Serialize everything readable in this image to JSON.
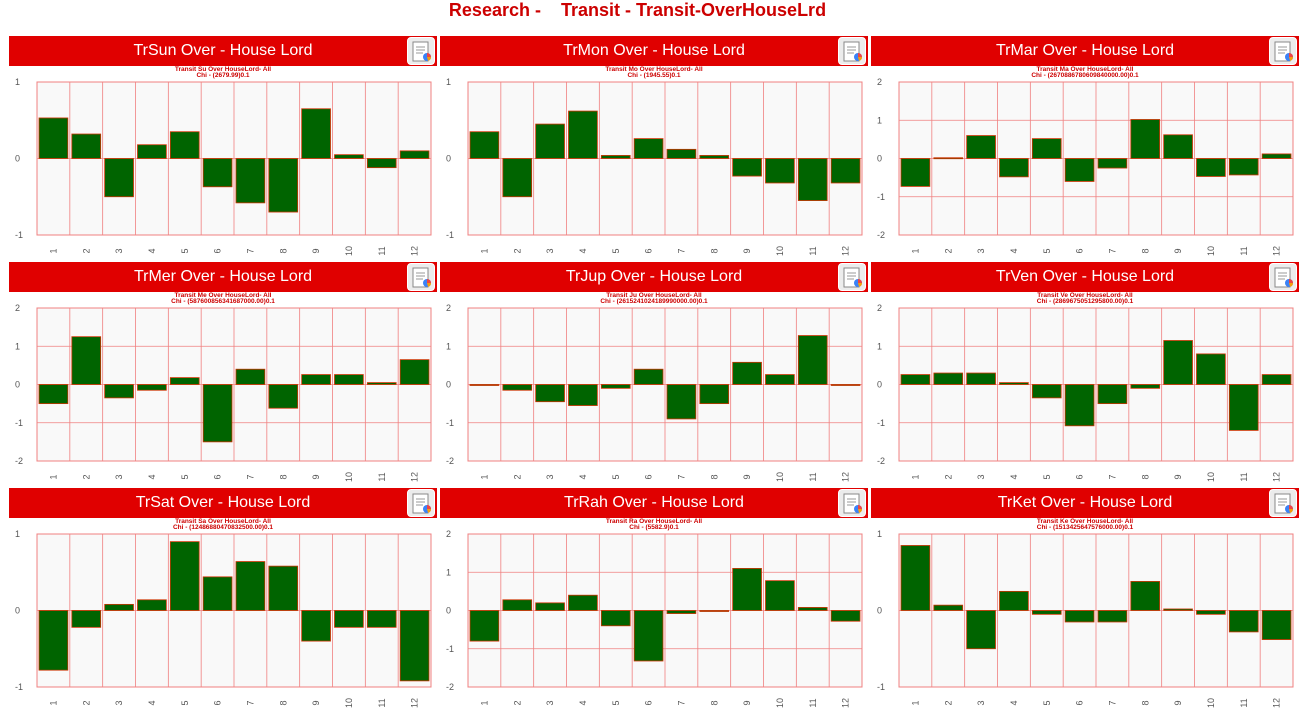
{
  "page": {
    "title_part1": "Research -",
    "title_part2": "Transit - Transit-OverHouseLrd"
  },
  "colors": {
    "header_bg": "#e00000",
    "bar_fill": "#006400",
    "bar_stroke": "#cc3300",
    "grid": "#f08080",
    "plot_bg": "#f9f9f9"
  },
  "icon": "report-icon",
  "chart_data": [
    {
      "type": "bar",
      "header": "TrSun Over - House Lord",
      "subtitle1": "Transit Su Over HouseLord- All",
      "subtitle2": "Chi - (2679.99)0.1",
      "categories": [
        "1",
        "2",
        "3",
        "4",
        "5",
        "6",
        "7",
        "8",
        "9",
        "10",
        "11",
        "12"
      ],
      "values": [
        0.53,
        0.32,
        -0.5,
        0.18,
        0.35,
        -0.37,
        -0.58,
        -0.7,
        0.65,
        0.05,
        -0.12,
        0.1
      ],
      "ylim": [
        -1,
        1
      ],
      "yticks": [
        -1,
        0,
        1
      ]
    },
    {
      "type": "bar",
      "header": "TrMon Over - House Lord",
      "subtitle1": "Transit Mo Over HouseLord- All",
      "subtitle2": "Chi - (1945.55)0.1",
      "categories": [
        "1",
        "2",
        "3",
        "4",
        "5",
        "6",
        "7",
        "8",
        "9",
        "10",
        "11",
        "12"
      ],
      "values": [
        0.35,
        -0.5,
        0.45,
        0.62,
        0.04,
        0.26,
        0.12,
        0.04,
        -0.23,
        -0.32,
        -0.55,
        -0.32
      ],
      "ylim": [
        -1,
        1
      ],
      "yticks": [
        -1,
        0,
        1
      ]
    },
    {
      "type": "bar",
      "header": "TrMar Over - House Lord",
      "subtitle1": "Transit Ma Over HouseLord- All",
      "subtitle2": "Chi - (2670886780609840000.00)0.1",
      "categories": [
        "1",
        "2",
        "3",
        "4",
        "5",
        "6",
        "7",
        "8",
        "9",
        "10",
        "11",
        "12"
      ],
      "values": [
        -0.73,
        0.02,
        0.6,
        -0.48,
        0.52,
        -0.6,
        -0.25,
        1.02,
        0.62,
        -0.47,
        -0.43,
        0.12
      ],
      "ylim": [
        -2,
        2
      ],
      "yticks": [
        -2,
        -1,
        0,
        1,
        2
      ]
    },
    {
      "type": "bar",
      "header": "TrMer Over - House Lord",
      "subtitle1": "Transit Me Over HouseLord- All",
      "subtitle2": "Chi - (587600856341687000.00)0.1",
      "categories": [
        "1",
        "2",
        "3",
        "4",
        "5",
        "6",
        "7",
        "8",
        "9",
        "10",
        "11",
        "12"
      ],
      "values": [
        -0.5,
        1.25,
        -0.35,
        -0.15,
        0.18,
        -1.5,
        0.4,
        -0.62,
        0.26,
        0.26,
        0.05,
        0.65
      ],
      "ylim": [
        -2,
        2
      ],
      "yticks": [
        -2,
        -1,
        0,
        1,
        2
      ]
    },
    {
      "type": "bar",
      "header": "TrJup Over - House Lord",
      "subtitle1": "Transit Ju Over HouseLord- All",
      "subtitle2": "Chi - (2615241024189990000.00)0.1",
      "categories": [
        "1",
        "2",
        "3",
        "4",
        "5",
        "6",
        "7",
        "8",
        "9",
        "10",
        "11",
        "12"
      ],
      "values": [
        0.0,
        -0.15,
        -0.45,
        -0.55,
        -0.1,
        0.4,
        -0.9,
        -0.5,
        0.58,
        0.26,
        1.28,
        0.0
      ],
      "ylim": [
        -2,
        2
      ],
      "yticks": [
        -2,
        -1,
        0,
        1,
        2
      ]
    },
    {
      "type": "bar",
      "header": "TrVen Over - House Lord",
      "subtitle1": "Transit Ve Over HouseLord- All",
      "subtitle2": "Chi - (2869675051295800.00)0.1",
      "categories": [
        "1",
        "2",
        "3",
        "4",
        "5",
        "6",
        "7",
        "8",
        "9",
        "10",
        "11",
        "12"
      ],
      "values": [
        0.26,
        0.3,
        0.3,
        0.05,
        -0.35,
        -1.08,
        -0.5,
        -0.1,
        1.15,
        0.8,
        -1.2,
        0.26
      ],
      "ylim": [
        -2,
        2
      ],
      "yticks": [
        -2,
        -1,
        0,
        1,
        2
      ]
    },
    {
      "type": "bar",
      "header": "TrSat Over - House Lord",
      "subtitle1": "Transit Sa Over HouseLord- All",
      "subtitle2": "Chi - (12486880470832500.00)0.1",
      "categories": [
        "1",
        "2",
        "3",
        "4",
        "5",
        "6",
        "7",
        "8",
        "9",
        "10",
        "11",
        "12"
      ],
      "values": [
        -0.78,
        -0.22,
        0.08,
        0.14,
        0.9,
        0.44,
        0.64,
        0.58,
        -0.4,
        -0.22,
        -0.22,
        -0.92
      ],
      "ylim": [
        -1,
        1
      ],
      "yticks": [
        -1,
        0,
        1
      ]
    },
    {
      "type": "bar",
      "header": "TrRah Over - House Lord",
      "subtitle1": "Transit Ra Over HouseLord- All",
      "subtitle2": "Chi - (5582.9)0.1",
      "categories": [
        "1",
        "2",
        "3",
        "4",
        "5",
        "6",
        "7",
        "8",
        "9",
        "10",
        "11",
        "12"
      ],
      "values": [
        -0.8,
        0.28,
        0.2,
        0.4,
        -0.4,
        -1.32,
        -0.08,
        -0.02,
        1.1,
        0.78,
        0.08,
        -0.28
      ],
      "ylim": [
        -2,
        2
      ],
      "yticks": [
        -2,
        -1,
        0,
        1,
        2
      ]
    },
    {
      "type": "bar",
      "header": "TrKet Over - House Lord",
      "subtitle1": "Transit Ke Over HouseLord- All",
      "subtitle2": "Chi - (1513425647576000.00)0.1",
      "categories": [
        "1",
        "2",
        "3",
        "4",
        "5",
        "6",
        "7",
        "8",
        "9",
        "10",
        "11",
        "12"
      ],
      "values": [
        0.85,
        0.07,
        -0.5,
        0.25,
        -0.05,
        -0.15,
        -0.15,
        0.38,
        0.02,
        -0.05,
        -0.28,
        -0.38
      ],
      "ylim": [
        -1,
        1
      ],
      "yticks": [
        -1,
        0,
        1
      ]
    }
  ]
}
